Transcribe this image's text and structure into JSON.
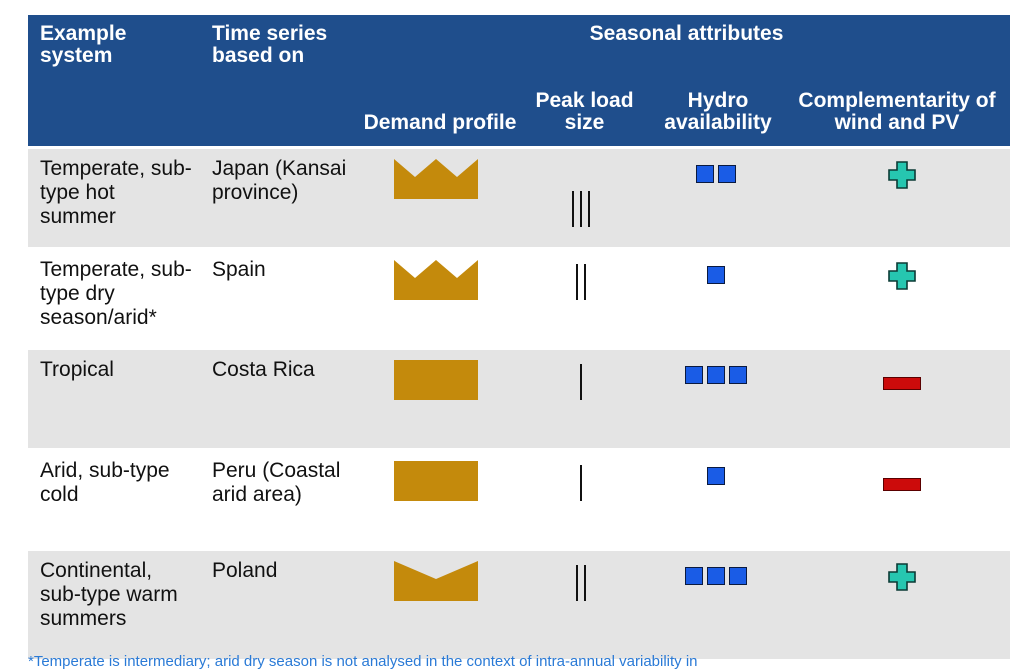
{
  "header": {
    "col1": "Example system",
    "col2": "Time series based on",
    "group": "Seasonal attributes",
    "col3": "Demand profile",
    "col4": "Peak load size",
    "col5": "Hydro availability",
    "col6": "Complementarity of wind and PV"
  },
  "rows": [
    {
      "system": "Temperate, sub-type hot summer",
      "based_on": "Japan (Kansai province)",
      "demand_profile_icon": "crown-icon",
      "peak_load_bars": 3,
      "hydro_squares": 2,
      "complementarity_icon": "plus-icon"
    },
    {
      "system": "Temperate, sub-type dry season/arid*",
      "based_on": "Spain",
      "demand_profile_icon": "crown-icon",
      "peak_load_bars": 2,
      "hydro_squares": 1,
      "complementarity_icon": "plus-icon"
    },
    {
      "system": "Tropical",
      "based_on": "Costa Rica",
      "demand_profile_icon": "flat-rectangle-icon",
      "peak_load_bars": 1,
      "hydro_squares": 3,
      "complementarity_icon": "minus-icon"
    },
    {
      "system": "Arid, sub-type cold",
      "based_on": "Peru (Coastal arid area)",
      "demand_profile_icon": "flat-rectangle-icon",
      "peak_load_bars": 1,
      "hydro_squares": 1,
      "complementarity_icon": "minus-icon"
    },
    {
      "system": "Continental, sub-type warm summers",
      "based_on": "Poland",
      "demand_profile_icon": "valley-icon",
      "peak_load_bars": 2,
      "hydro_squares": 3,
      "complementarity_icon": "plus-icon"
    }
  ],
  "footnote": "*Temperate is intermediary; arid dry season is not analysed in the context of intra-annual variability in",
  "colors": {
    "header_bg": "#1f4e8c",
    "row_shade": "#e4e4e4",
    "demand_gold": "#c48a0c",
    "hydro_blue": "#1a5ce6",
    "plus_teal": "#26c6b0",
    "minus_red": "#cc0b0b"
  }
}
